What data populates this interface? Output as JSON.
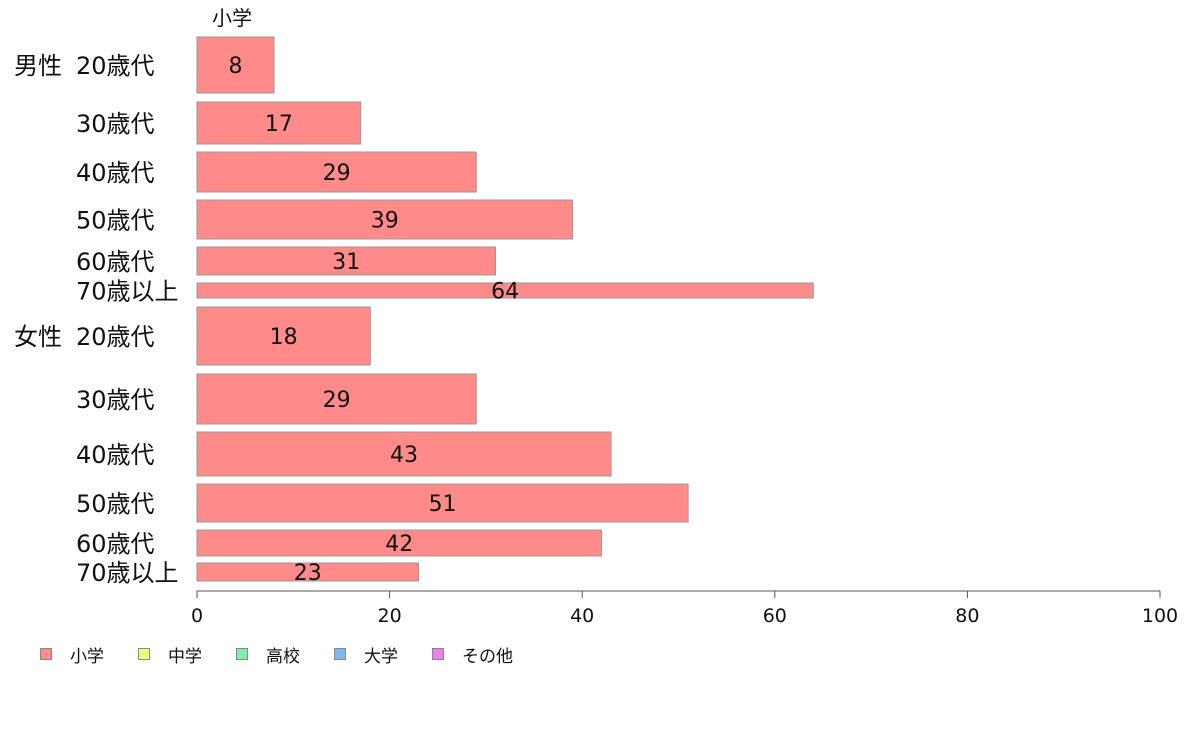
{
  "chart_data": {
    "type": "bar",
    "orientation": "horizontal",
    "column_header": "小学",
    "groups": [
      {
        "label": "男性",
        "categories": [
          "20歳代",
          "30歳代",
          "40歳代",
          "50歳代",
          "60歳代",
          "70歳以上"
        ],
        "values": [
          8,
          17,
          29,
          39,
          31,
          64
        ]
      },
      {
        "label": "女性",
        "categories": [
          "20歳代",
          "30歳代",
          "40歳代",
          "50歳代",
          "60歳代",
          "70歳以上"
        ],
        "values": [
          18,
          29,
          43,
          51,
          42,
          23
        ]
      }
    ],
    "series": [
      {
        "name": "小学",
        "color": "#ff8a8a"
      },
      {
        "name": "中学",
        "color": "#eeff80"
      },
      {
        "name": "高校",
        "color": "#80f0a8"
      },
      {
        "name": "大学",
        "color": "#80b8f0"
      },
      {
        "name": "その他",
        "color": "#f080f0"
      }
    ],
    "xlim": [
      0,
      100
    ],
    "xticks": [
      "0",
      "20",
      "40",
      "60",
      "80",
      "100"
    ],
    "grid": false,
    "legend_position": "bottom-left",
    "bar_color": "#ff8a8a",
    "bar_border": "#999999"
  }
}
